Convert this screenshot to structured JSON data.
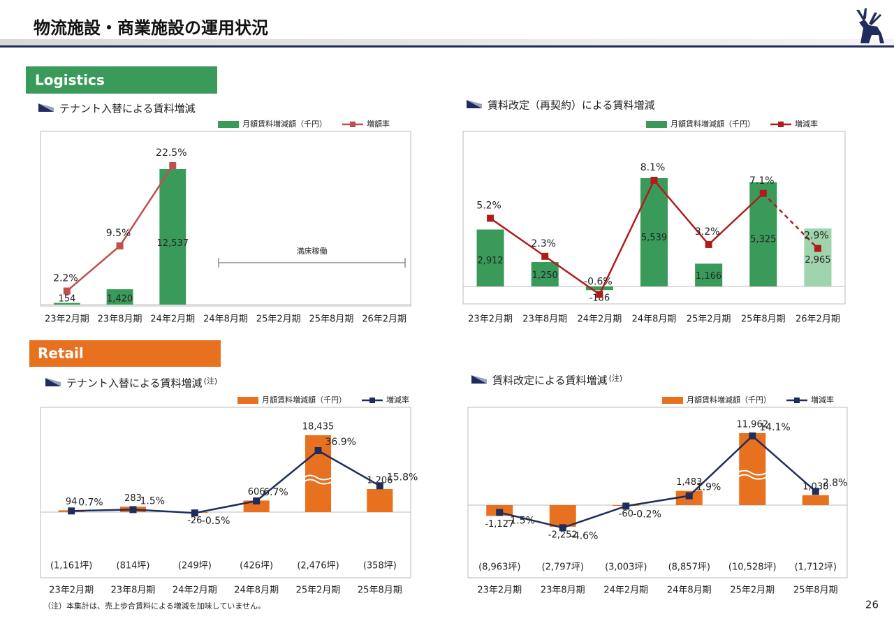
{
  "header": {
    "title": "物流施設・商業施設の運用状況",
    "sections": [
      "Logistics",
      "Retail"
    ],
    "footnote": "（注）本集計は、売上歩合賃料による増減を加味していません。",
    "page": "26"
  },
  "chart_data": [
    {
      "type": "bar-line",
      "title": "テナント入替による賃料増減",
      "categories": [
        "23年2月期",
        "23年8月期",
        "24年2月期",
        "24年8月期",
        "25年2月期",
        "25年8月期",
        "26年2月期"
      ],
      "series": [
        {
          "name": "月額賃料増減額（千円）",
          "type": "bar",
          "color": "#3a9a5a",
          "values": [
            154,
            1420,
            12537,
            null,
            null,
            null,
            null
          ],
          "value_labels": [
            "154",
            "1,420",
            "12,537",
            null,
            null,
            null,
            null
          ]
        },
        {
          "name": "増額率",
          "type": "line",
          "color": "#c0504d",
          "values": [
            2.2,
            9.5,
            22.5,
            null,
            null,
            null,
            null
          ],
          "value_labels": [
            "2.2%",
            "9.5%",
            "22.5%",
            null,
            null,
            null,
            null
          ]
        }
      ],
      "annotation": "満床稼働"
    },
    {
      "type": "bar-line",
      "title": "賃料改定（再契約）による賃料増減",
      "categories": [
        "23年2月期",
        "23年8月期",
        "24年2月期",
        "24年8月期",
        "25年2月期",
        "25年8月期",
        "26年2月期"
      ],
      "series": [
        {
          "name": "月額賃料増減額（千円）",
          "type": "bar",
          "color": "#3a9a5a",
          "colors": [
            "#3a9a5a",
            "#3a9a5a",
            "#3a9a5a",
            "#3a9a5a",
            "#3a9a5a",
            "#3a9a5a",
            "#9fd4ad"
          ],
          "values": [
            2912,
            1250,
            -186,
            5539,
            1166,
            5325,
            2965
          ],
          "value_labels": [
            "2,912",
            "1,250",
            "-186",
            "5,539",
            "1,166",
            "5,325",
            "2,965"
          ]
        },
        {
          "name": "増減率",
          "type": "line",
          "color": "#b01c1c",
          "dashed_last": true,
          "values": [
            5.2,
            2.3,
            -0.6,
            8.1,
            3.2,
            7.1,
            2.9
          ],
          "value_labels": [
            "5.2%",
            "2.3%",
            "-0.6%",
            "8.1%",
            "3.2%",
            "7.1%",
            "2.9%"
          ]
        }
      ]
    },
    {
      "type": "bar-line",
      "title": "テナント入替による賃料増減",
      "note": "(注)",
      "broken": true,
      "categories": [
        "23年2月期",
        "23年8月期",
        "24年2月期",
        "24年8月期",
        "25年2月期",
        "25年8月期"
      ],
      "area_labels": [
        "(1,161坪)",
        "(814坪)",
        "(249坪)",
        "(426坪)",
        "(2,476坪)",
        "(358坪)"
      ],
      "series": [
        {
          "name": "月額賃料増減額（千円）",
          "type": "bar",
          "color": "#e8711f",
          "values": [
            94,
            283,
            -26,
            606,
            18435,
            1206
          ],
          "value_labels": [
            "94",
            "283",
            "-26",
            "606",
            "18,435",
            "1,206"
          ]
        },
        {
          "name": "増減率",
          "type": "line",
          "color": "#1f2d5c",
          "values": [
            0.7,
            1.5,
            -0.5,
            6.7,
            36.9,
            15.8
          ],
          "value_labels": [
            "0.7%",
            "1.5%",
            "-0.5%",
            "6.7%",
            "36.9%",
            "15.8%"
          ]
        }
      ]
    },
    {
      "type": "bar-line",
      "title": "賃料改定による賃料増減",
      "note": "(注)",
      "broken": true,
      "categories": [
        "23年2月期",
        "23年8月期",
        "24年2月期",
        "24年8月期",
        "25年2月期",
        "25年8月期"
      ],
      "area_labels": [
        "(8,963坪)",
        "(2,797坪)",
        "(3,003坪)",
        "(8,857坪)",
        "(10,528坪)",
        "(1,712坪)"
      ],
      "series": [
        {
          "name": "月額賃料増減額（千円）",
          "type": "bar",
          "color": "#e8711f",
          "values": [
            -1127,
            -2252,
            -60,
            1483,
            11962,
            1038
          ],
          "value_labels": [
            "-1,127",
            "-2,252",
            "-60",
            "1,483",
            "11,962",
            "1,038"
          ]
        },
        {
          "name": "増減率",
          "type": "line",
          "color": "#1f2d5c",
          "values": [
            -1.5,
            -4.6,
            -0.2,
            1.9,
            14.1,
            2.8
          ],
          "value_labels": [
            "-1.5%",
            "-4.6%",
            "-0.2%",
            "1.9%",
            "14.1%",
            "2.8%"
          ]
        }
      ]
    }
  ]
}
